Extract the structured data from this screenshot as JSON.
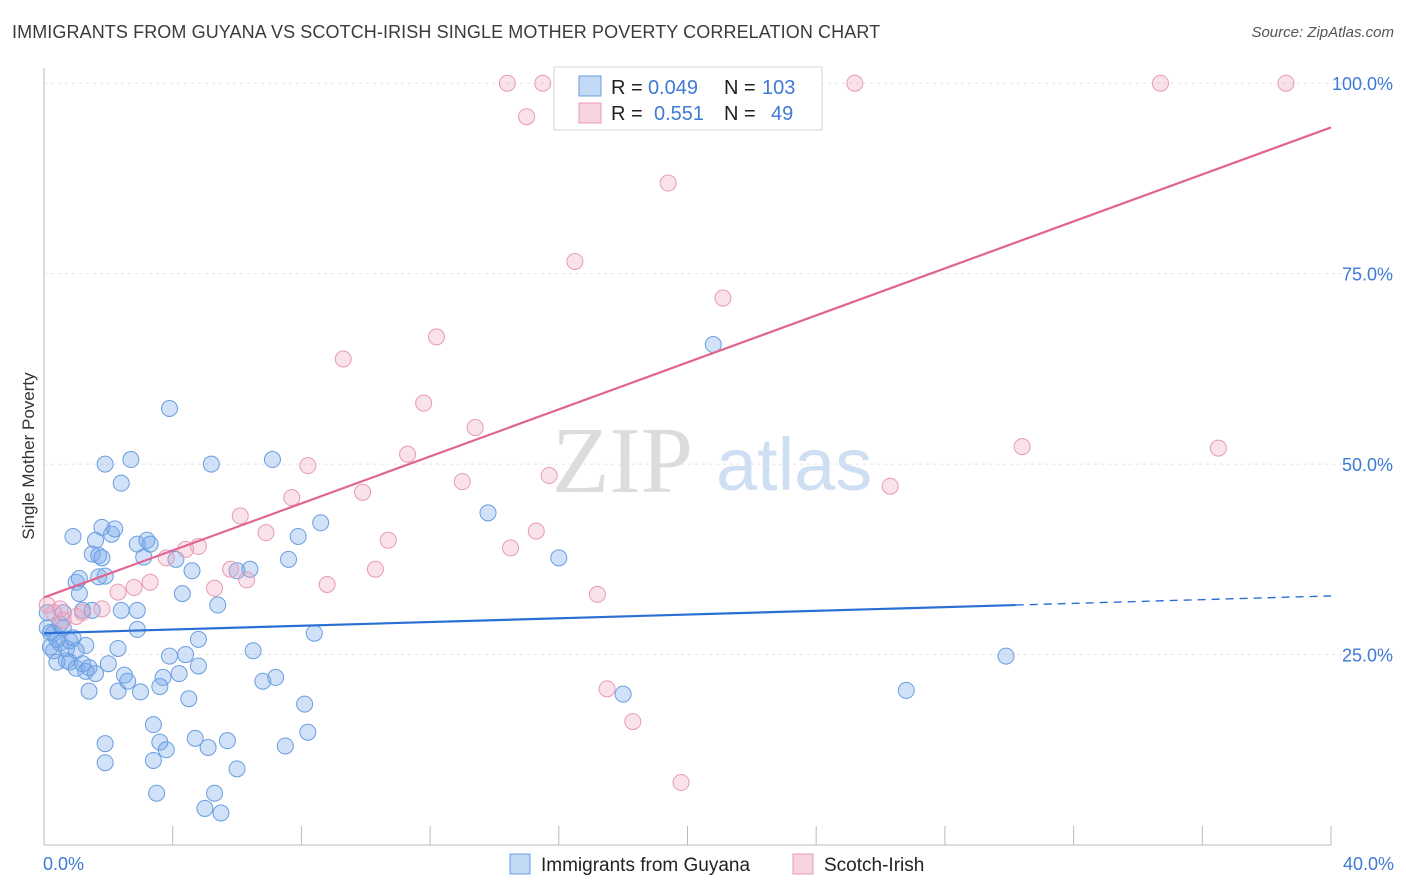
{
  "title": "IMMIGRANTS FROM GUYANA VS SCOTCH-IRISH SINGLE MOTHER POVERTY CORRELATION CHART",
  "source": "Source: ZipAtlas.com",
  "watermark": {
    "zip": "ZIP",
    "atlas": "atlas"
  },
  "chart_data": {
    "type": "scatter",
    "ylabel": "Single Mother Poverty",
    "xlim": [
      0,
      40
    ],
    "ylim": [
      0,
      102
    ],
    "x_tick_labels": {
      "min": "0.0%",
      "max": "40.0%"
    },
    "y_ticks": [
      {
        "value": 100,
        "label": "100.0%"
      },
      {
        "value": 75,
        "label": "75.0%"
      },
      {
        "value": 50,
        "label": "50.0%"
      },
      {
        "value": 25,
        "label": "25.0%"
      }
    ],
    "grid": "horizontal dashed",
    "legend_position": "top-center",
    "colors": {
      "guyana_fill": "rgba(120,170,235,0.35)",
      "guyana_stroke": "#6a9ee0",
      "guyana_line": "#2a6fd4",
      "scotch_fill": "rgba(240,160,190,0.30)",
      "scotch_stroke": "#e89ab5",
      "scotch_line": "#e0648f",
      "label_blue": "#3e7ad6"
    },
    "legend": [
      {
        "r_label": "R =",
        "r_value": "0.049",
        "n_label": "N =",
        "n_value": "103"
      },
      {
        "r_label": "R =",
        "r_value": "0.551",
        "n_label": "N =",
        "n_value": "49"
      }
    ],
    "series": [
      {
        "name": "Immigrants from Guyana",
        "trend": {
          "x0": 0,
          "y0": 27.8,
          "x1": 30.2,
          "y1": 31.5,
          "x_dash_end": 40,
          "y_dash_end": 32.7
        },
        "points": [
          [
            0.1,
            30.5
          ],
          [
            0.1,
            28.5
          ],
          [
            0.2,
            27.9
          ],
          [
            0.2,
            26.0
          ],
          [
            0.3,
            27.8
          ],
          [
            0.3,
            25.5
          ],
          [
            0.4,
            24.0
          ],
          [
            0.5,
            29.0
          ],
          [
            0.5,
            26.5
          ],
          [
            0.6,
            30.5
          ],
          [
            0.7,
            25.8
          ],
          [
            0.7,
            24.2
          ],
          [
            0.8,
            26.8
          ],
          [
            0.8,
            24.0
          ],
          [
            0.9,
            40.5
          ],
          [
            0.9,
            27.2
          ],
          [
            1.0,
            23.2
          ],
          [
            1.0,
            34.5
          ],
          [
            1.1,
            33.0
          ],
          [
            1.1,
            35.0
          ],
          [
            1.2,
            30.8
          ],
          [
            1.2,
            23.8
          ],
          [
            1.3,
            22.8
          ],
          [
            1.4,
            20.2
          ],
          [
            1.4,
            23.3
          ],
          [
            1.5,
            38.2
          ],
          [
            1.5,
            30.8
          ],
          [
            1.6,
            40.0
          ],
          [
            1.6,
            22.5
          ],
          [
            1.7,
            38.0
          ],
          [
            1.7,
            35.2
          ],
          [
            1.8,
            41.7
          ],
          [
            1.8,
            37.7
          ],
          [
            1.9,
            35.3
          ],
          [
            1.9,
            13.3
          ],
          [
            1.9,
            10.8
          ],
          [
            1.9,
            50.0
          ],
          [
            2.1,
            40.8
          ],
          [
            2.2,
            41.5
          ],
          [
            2.3,
            25.8
          ],
          [
            2.3,
            20.2
          ],
          [
            2.4,
            47.5
          ],
          [
            2.4,
            30.8
          ],
          [
            2.5,
            22.3
          ],
          [
            2.6,
            21.5
          ],
          [
            2.7,
            50.6
          ],
          [
            2.9,
            39.5
          ],
          [
            2.9,
            30.8
          ],
          [
            2.9,
            28.3
          ],
          [
            3.0,
            20.1
          ],
          [
            3.1,
            37.8
          ],
          [
            3.2,
            40.0
          ],
          [
            3.3,
            39.5
          ],
          [
            3.4,
            15.8
          ],
          [
            3.4,
            11.1
          ],
          [
            3.5,
            6.8
          ],
          [
            3.6,
            13.5
          ],
          [
            3.7,
            22.0
          ],
          [
            3.8,
            12.5
          ],
          [
            3.9,
            24.8
          ],
          [
            3.9,
            57.3
          ],
          [
            4.1,
            37.5
          ],
          [
            4.2,
            22.5
          ],
          [
            4.3,
            33.0
          ],
          [
            4.5,
            19.2
          ],
          [
            4.6,
            36.0
          ],
          [
            4.7,
            14.0
          ],
          [
            4.8,
            23.5
          ],
          [
            4.8,
            27.0
          ],
          [
            5.0,
            4.8
          ],
          [
            5.1,
            12.8
          ],
          [
            5.2,
            50.0
          ],
          [
            5.3,
            6.8
          ],
          [
            5.4,
            31.5
          ],
          [
            5.5,
            4.2
          ],
          [
            5.7,
            13.7
          ],
          [
            6.0,
            10.0
          ],
          [
            6.0,
            36.0
          ],
          [
            6.4,
            36.2
          ],
          [
            6.5,
            25.5
          ],
          [
            7.1,
            50.6
          ],
          [
            7.2,
            22.0
          ],
          [
            7.5,
            13.0
          ],
          [
            7.6,
            37.5
          ],
          [
            7.9,
            40.5
          ],
          [
            8.1,
            18.5
          ],
          [
            8.2,
            14.8
          ],
          [
            8.4,
            27.8
          ],
          [
            8.6,
            42.3
          ],
          [
            13.8,
            43.6
          ],
          [
            16.0,
            37.7
          ],
          [
            18.0,
            19.8
          ],
          [
            20.8,
            65.7
          ],
          [
            26.8,
            20.3
          ],
          [
            29.9,
            24.8
          ],
          [
            0.4,
            27.0
          ],
          [
            0.6,
            28.5
          ],
          [
            1.3,
            26.2
          ],
          [
            2.0,
            23.8
          ],
          [
            3.6,
            20.8
          ],
          [
            4.4,
            25.0
          ],
          [
            6.8,
            21.5
          ],
          [
            1.0,
            25.5
          ]
        ]
      },
      {
        "name": "Scotch-Irish",
        "trend": {
          "x0": 0,
          "y0": 32.5,
          "x1": 40,
          "y1": 94.2
        },
        "points": [
          [
            0.1,
            31.5
          ],
          [
            0.3,
            30.5
          ],
          [
            0.5,
            31.0
          ],
          [
            0.6,
            29.5
          ],
          [
            1.0,
            30.0
          ],
          [
            1.2,
            30.5
          ],
          [
            1.8,
            31.0
          ],
          [
            2.3,
            33.2
          ],
          [
            2.8,
            33.8
          ],
          [
            3.3,
            34.5
          ],
          [
            3.8,
            37.7
          ],
          [
            4.4,
            38.8
          ],
          [
            4.8,
            39.2
          ],
          [
            5.3,
            33.7
          ],
          [
            5.8,
            36.2
          ],
          [
            6.1,
            43.2
          ],
          [
            6.3,
            34.8
          ],
          [
            6.9,
            41.0
          ],
          [
            7.7,
            45.6
          ],
          [
            8.2,
            49.8
          ],
          [
            8.8,
            34.2
          ],
          [
            9.3,
            63.8
          ],
          [
            9.9,
            46.3
          ],
          [
            10.3,
            36.2
          ],
          [
            10.7,
            40.0
          ],
          [
            11.3,
            51.3
          ],
          [
            11.8,
            58.0
          ],
          [
            12.2,
            66.7
          ],
          [
            13.0,
            47.7
          ],
          [
            13.4,
            54.8
          ],
          [
            14.4,
            100
          ],
          [
            14.5,
            39.0
          ],
          [
            15.0,
            95.6
          ],
          [
            15.3,
            41.2
          ],
          [
            15.5,
            100
          ],
          [
            15.7,
            48.5
          ],
          [
            16.5,
            76.6
          ],
          [
            17.2,
            32.9
          ],
          [
            17.5,
            20.5
          ],
          [
            18.3,
            16.2
          ],
          [
            19.4,
            86.9
          ],
          [
            19.8,
            8.2
          ],
          [
            21.1,
            71.8
          ],
          [
            25.2,
            100
          ],
          [
            26.3,
            47.1
          ],
          [
            30.4,
            52.3
          ],
          [
            34.7,
            100
          ],
          [
            36.5,
            52.1
          ],
          [
            38.6,
            100
          ]
        ]
      }
    ]
  },
  "bottom_legend": [
    {
      "label": "Immigrants from Guyana"
    },
    {
      "label": "Scotch-Irish"
    }
  ]
}
